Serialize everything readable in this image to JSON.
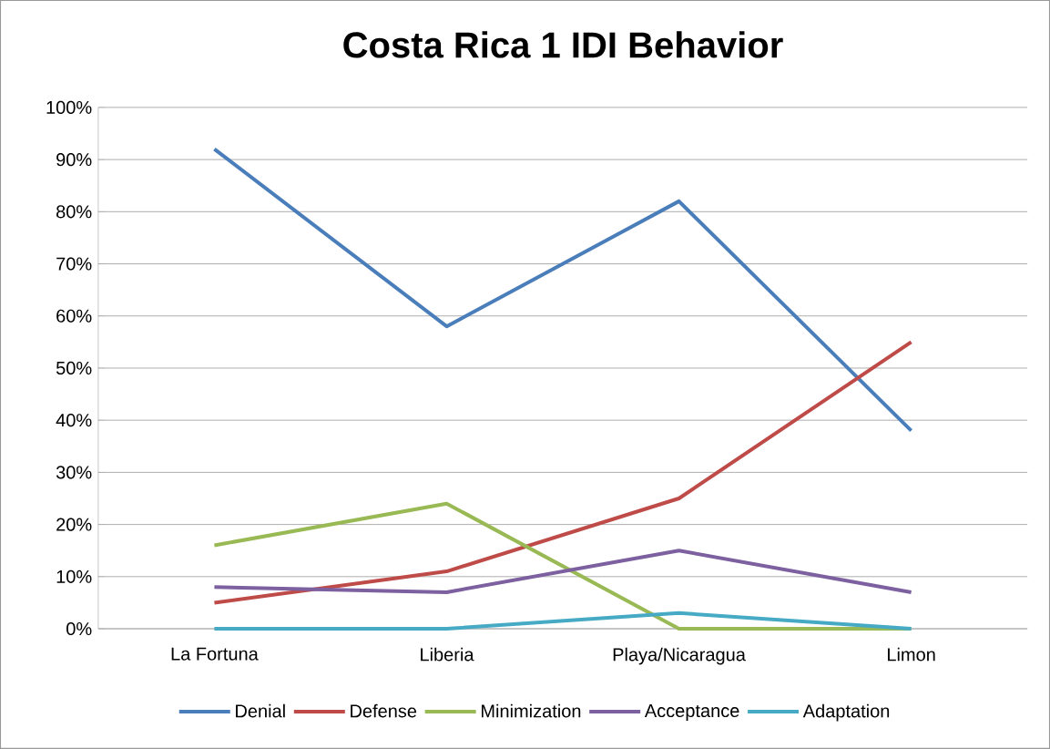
{
  "chart_data": {
    "type": "line",
    "title": "Costa Rica 1 IDI Behavior",
    "categories": [
      "La Fortuna",
      "Liberia",
      "Playa/Nicaragua",
      "Limon"
    ],
    "series": [
      {
        "name": "Denial",
        "color": "#4a7ebb",
        "values": [
          92,
          58,
          82,
          38
        ]
      },
      {
        "name": "Defense",
        "color": "#be4b48",
        "values": [
          5,
          11,
          25,
          55
        ]
      },
      {
        "name": "Minimization",
        "color": "#98b954",
        "values": [
          16,
          24,
          0,
          0
        ]
      },
      {
        "name": "Acceptance",
        "color": "#7d60a0",
        "values": [
          8,
          7,
          15,
          7
        ]
      },
      {
        "name": "Adaptation",
        "color": "#46aac5",
        "values": [
          0,
          0,
          3,
          0
        ]
      }
    ],
    "ylim": [
      0,
      100
    ],
    "yticks": [
      {
        "value": 0,
        "label": "0%"
      },
      {
        "value": 10,
        "label": "10%"
      },
      {
        "value": 20,
        "label": "20%"
      },
      {
        "value": 30,
        "label": "30%"
      },
      {
        "value": 40,
        "label": "40%"
      },
      {
        "value": 50,
        "label": "50%"
      },
      {
        "value": 60,
        "label": "60%"
      },
      {
        "value": 70,
        "label": "70%"
      },
      {
        "value": 80,
        "label": "80%"
      },
      {
        "value": 90,
        "label": "90%"
      },
      {
        "value": 100,
        "label": "100%"
      }
    ],
    "grid": "y",
    "legend": "bottom"
  }
}
